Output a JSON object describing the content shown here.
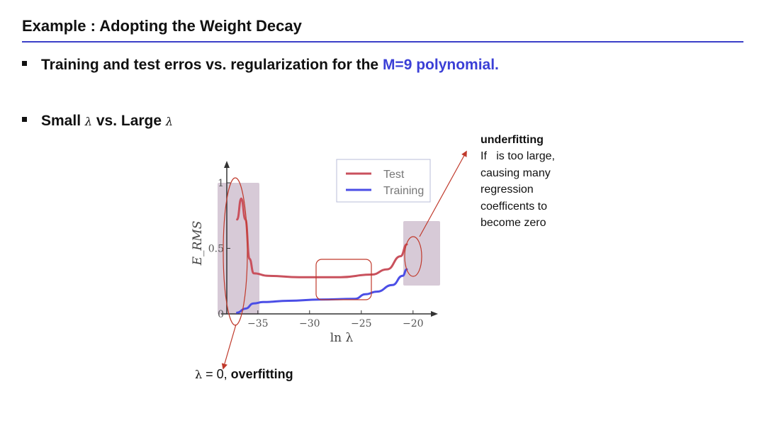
{
  "slide": {
    "title": "Example : Adopting the Weight Decay",
    "bullet1": {
      "text": "Training and test erros vs. regularization for the ",
      "highlight": "M=9 polynomial."
    },
    "bullet2": {
      "prefix": "Small ",
      "lambda1": "λ",
      "middle": " vs. Large ",
      "lambda2": "λ"
    }
  },
  "annotations": {
    "right": {
      "heading": "underfitting",
      "body": "If   is too large,\ncausing many\nregression\ncoefficents to\nbecome zero"
    },
    "bottom": {
      "lambda": "λ",
      "equals": " = 0, ",
      "bold": "overfitting"
    }
  },
  "colors": {
    "accent": "#3b3fd6",
    "test": "#c9515d",
    "training": "#4b4ee6",
    "arrow": "#c0392b"
  },
  "chart_data": {
    "type": "line",
    "xlabel": "ln λ",
    "ylabel": "E_RMS",
    "xlim": [
      -38,
      -18
    ],
    "ylim": [
      0,
      1
    ],
    "xticks": [
      -35,
      -30,
      -25,
      -20
    ],
    "yticks": [
      0,
      0.5,
      1
    ],
    "legend_position": "top-right",
    "series": [
      {
        "name": "Test",
        "color": "#c9515d",
        "points": [
          [
            -37,
            0.72
          ],
          [
            -36.6,
            0.88
          ],
          [
            -36.2,
            0.72
          ],
          [
            -35.8,
            0.42
          ],
          [
            -35.4,
            0.31
          ],
          [
            -34,
            0.29
          ],
          [
            -31,
            0.28
          ],
          [
            -27,
            0.28
          ],
          [
            -24,
            0.3
          ],
          [
            -22.5,
            0.34
          ],
          [
            -21.2,
            0.44
          ],
          [
            -20.6,
            0.53
          ]
        ]
      },
      {
        "name": "Training",
        "color": "#4b4ee6",
        "points": [
          [
            -37,
            0.01
          ],
          [
            -36.2,
            0.04
          ],
          [
            -35.4,
            0.08
          ],
          [
            -34.5,
            0.09
          ],
          [
            -32,
            0.1
          ],
          [
            -29,
            0.11
          ],
          [
            -25.6,
            0.115
          ],
          [
            -24.6,
            0.15
          ],
          [
            -23.5,
            0.17
          ],
          [
            -22,
            0.22
          ],
          [
            -21,
            0.29
          ],
          [
            -20.6,
            0.34
          ]
        ]
      }
    ],
    "highlights": [
      "small-lambda-region",
      "middle-region",
      "large-lambda-region"
    ]
  }
}
